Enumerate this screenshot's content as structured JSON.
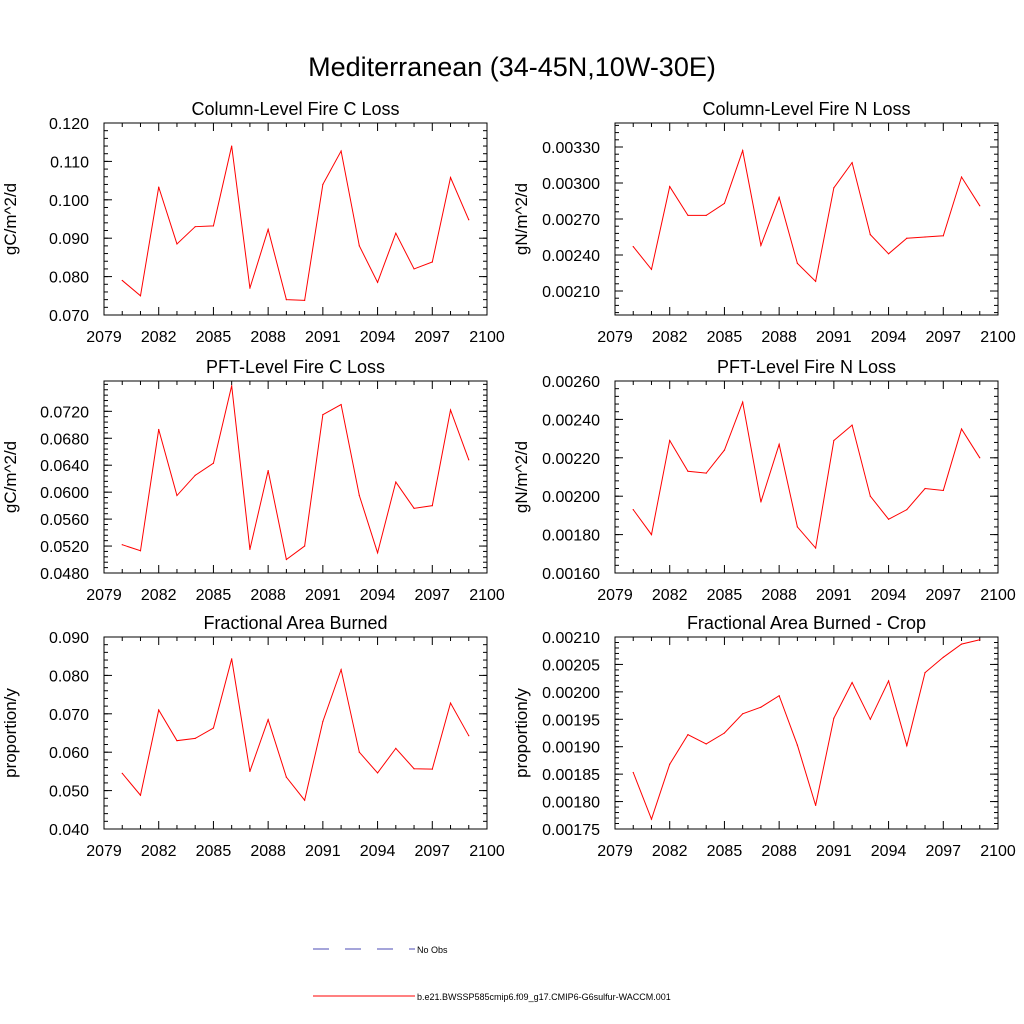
{
  "figure": {
    "title": "Mediterranean (34-45N,10W-30E)",
    "legend": [
      {
        "label": "No Obs",
        "color": "#4b4bb4",
        "style": "dashed"
      },
      {
        "label": "b.e21.BWSSP585cmip6.f09_g17.CMIP6-G6sulfur-WACCM.001",
        "color": "#ff0000",
        "style": "solid"
      }
    ]
  },
  "chart_data": [
    {
      "type": "line",
      "title": "Column-Level Fire C Loss",
      "xlabel": "",
      "ylabel": "gC/m^2/d",
      "xlim": [
        2079,
        2100
      ],
      "ylim": [
        0.07,
        0.12
      ],
      "xticks": [
        "2079",
        "2082",
        "2085",
        "2088",
        "2091",
        "2094",
        "2097",
        "2100"
      ],
      "yticks": [
        "0.070",
        "0.080",
        "0.090",
        "0.100",
        "0.110",
        "0.120"
      ],
      "ytick_values": [
        0.07,
        0.08,
        0.09,
        0.1,
        0.11,
        0.12
      ],
      "x": [
        2080,
        2081,
        2082,
        2083,
        2084,
        2085,
        2086,
        2087,
        2088,
        2089,
        2090,
        2091,
        2092,
        2093,
        2094,
        2095,
        2096,
        2097,
        2098,
        2099
      ],
      "series": [
        {
          "name": "b.e21.BWSSP585cmip6.f09_g17.CMIP6-G6sulfur-WACCM.001",
          "color": "#ff0000",
          "values": [
            0.079,
            0.075,
            0.1033,
            0.0885,
            0.093,
            0.0932,
            0.114,
            0.077,
            0.0923,
            0.074,
            0.0738,
            0.104,
            0.1127,
            0.088,
            0.0785,
            0.0913,
            0.082,
            0.0838,
            0.1058,
            0.0948
          ]
        }
      ]
    },
    {
      "type": "line",
      "title": "Column-Level Fire N Loss",
      "xlabel": "",
      "ylabel": "gN/m^2/d",
      "xlim": [
        2079,
        2100
      ],
      "ylim": [
        0.0019,
        0.0035
      ],
      "xticks": [
        "2079",
        "2082",
        "2085",
        "2088",
        "2091",
        "2094",
        "2097",
        "2100"
      ],
      "yticks": [
        "0.00210",
        "0.00240",
        "0.00270",
        "0.00300",
        "0.00330"
      ],
      "ytick_values": [
        0.0021,
        0.0024,
        0.0027,
        0.003,
        0.0033
      ],
      "x": [
        2080,
        2081,
        2082,
        2083,
        2084,
        2085,
        2086,
        2087,
        2088,
        2089,
        2090,
        2091,
        2092,
        2093,
        2094,
        2095,
        2096,
        2097,
        2098,
        2099
      ],
      "series": [
        {
          "name": "b.e21.BWSSP585cmip6.f09_g17.CMIP6-G6sulfur-WACCM.001",
          "color": "#ff0000",
          "values": [
            0.00247,
            0.00228,
            0.00297,
            0.00273,
            0.00273,
            0.00283,
            0.00327,
            0.00248,
            0.00288,
            0.00233,
            0.00218,
            0.00296,
            0.00317,
            0.00257,
            0.00241,
            0.00254,
            0.00255,
            0.00256,
            0.00305,
            0.00281
          ]
        }
      ]
    },
    {
      "type": "line",
      "title": "PFT-Level Fire C Loss",
      "xlabel": "",
      "ylabel": "gC/m^2/d",
      "xlim": [
        2079,
        2100
      ],
      "ylim": [
        0.048,
        0.0765
      ],
      "xticks": [
        "2079",
        "2082",
        "2085",
        "2088",
        "2091",
        "2094",
        "2097",
        "2100"
      ],
      "yticks": [
        "0.0480",
        "0.0520",
        "0.0560",
        "0.0600",
        "0.0640",
        "0.0680",
        "0.0720"
      ],
      "ytick_values": [
        0.048,
        0.052,
        0.056,
        0.06,
        0.064,
        0.068,
        0.072
      ],
      "x": [
        2080,
        2081,
        2082,
        2083,
        2084,
        2085,
        2086,
        2087,
        2088,
        2089,
        2090,
        2091,
        2092,
        2093,
        2094,
        2095,
        2096,
        2097,
        2098,
        2099
      ],
      "series": [
        {
          "name": "b.e21.BWSSP585cmip6.f09_g17.CMIP6-G6sulfur-WACCM.001",
          "color": "#ff0000",
          "values": [
            0.0522,
            0.0513,
            0.0693,
            0.0595,
            0.0625,
            0.0643,
            0.0758,
            0.0515,
            0.0632,
            0.05,
            0.052,
            0.0715,
            0.073,
            0.0595,
            0.051,
            0.0615,
            0.0576,
            0.058,
            0.0722,
            0.0648
          ]
        }
      ]
    },
    {
      "type": "line",
      "title": "PFT-Level Fire N Loss",
      "xlabel": "",
      "ylabel": "gN/m^2/d",
      "xlim": [
        2079,
        2100
      ],
      "ylim": [
        0.0016,
        0.0026
      ],
      "xticks": [
        "2079",
        "2082",
        "2085",
        "2088",
        "2091",
        "2094",
        "2097",
        "2100"
      ],
      "yticks": [
        "0.00160",
        "0.00180",
        "0.00200",
        "0.00220",
        "0.00240",
        "0.00260"
      ],
      "ytick_values": [
        0.0016,
        0.0018,
        0.002,
        0.0022,
        0.0024,
        0.0026
      ],
      "x": [
        2080,
        2081,
        2082,
        2083,
        2084,
        2085,
        2086,
        2087,
        2088,
        2089,
        2090,
        2091,
        2092,
        2093,
        2094,
        2095,
        2096,
        2097,
        2098,
        2099
      ],
      "series": [
        {
          "name": "b.e21.BWSSP585cmip6.f09_g17.CMIP6-G6sulfur-WACCM.001",
          "color": "#ff0000",
          "values": [
            0.00193,
            0.0018,
            0.00229,
            0.00213,
            0.00212,
            0.00224,
            0.00249,
            0.00197,
            0.00227,
            0.00184,
            0.00173,
            0.00229,
            0.00237,
            0.002,
            0.00188,
            0.00193,
            0.00204,
            0.00203,
            0.00235,
            0.0022
          ]
        }
      ]
    },
    {
      "type": "line",
      "title": "Fractional Area Burned",
      "xlabel": "",
      "ylabel": "proportion/y",
      "xlim": [
        2079,
        2100
      ],
      "ylim": [
        0.04,
        0.09
      ],
      "xticks": [
        "2079",
        "2082",
        "2085",
        "2088",
        "2091",
        "2094",
        "2097",
        "2100"
      ],
      "yticks": [
        "0.040",
        "0.050",
        "0.060",
        "0.070",
        "0.080",
        "0.090"
      ],
      "ytick_values": [
        0.04,
        0.05,
        0.06,
        0.07,
        0.08,
        0.09
      ],
      "x": [
        2080,
        2081,
        2082,
        2083,
        2084,
        2085,
        2086,
        2087,
        2088,
        2089,
        2090,
        2091,
        2092,
        2093,
        2094,
        2095,
        2096,
        2097,
        2098,
        2099
      ],
      "series": [
        {
          "name": "b.e21.BWSSP585cmip6.f09_g17.CMIP6-G6sulfur-WACCM.001",
          "color": "#ff0000",
          "values": [
            0.0545,
            0.0488,
            0.071,
            0.063,
            0.0636,
            0.0663,
            0.0843,
            0.055,
            0.0685,
            0.0535,
            0.0475,
            0.068,
            0.0815,
            0.06,
            0.0546,
            0.061,
            0.0557,
            0.0556,
            0.0728,
            0.0643
          ]
        }
      ]
    },
    {
      "type": "line",
      "title": "Fractional Area Burned - Crop",
      "xlabel": "",
      "ylabel": "proportion/y",
      "xlim": [
        2079,
        2100
      ],
      "ylim": [
        0.00175,
        0.0021
      ],
      "xticks": [
        "2079",
        "2082",
        "2085",
        "2088",
        "2091",
        "2094",
        "2097",
        "2100"
      ],
      "yticks": [
        "0.00175",
        "0.00180",
        "0.00185",
        "0.00190",
        "0.00195",
        "0.00200",
        "0.00205",
        "0.00210"
      ],
      "ytick_values": [
        0.00175,
        0.0018,
        0.00185,
        0.0019,
        0.00195,
        0.002,
        0.00205,
        0.0021
      ],
      "x": [
        2080,
        2081,
        2082,
        2083,
        2084,
        2085,
        2086,
        2087,
        2088,
        2089,
        2090,
        2091,
        2092,
        2093,
        2094,
        2095,
        2096,
        2097,
        2098,
        2099
      ],
      "series": [
        {
          "name": "b.e21.BWSSP585cmip6.f09_g17.CMIP6-G6sulfur-WACCM.001",
          "color": "#ff0000",
          "values": [
            0.001853,
            0.001768,
            0.001868,
            0.001922,
            0.001905,
            0.001925,
            0.00196,
            0.001972,
            0.001993,
            0.001903,
            0.001793,
            0.001952,
            0.002017,
            0.00195,
            0.00202,
            0.001902,
            0.002035,
            0.002063,
            0.002087,
            0.002095
          ]
        }
      ]
    }
  ]
}
